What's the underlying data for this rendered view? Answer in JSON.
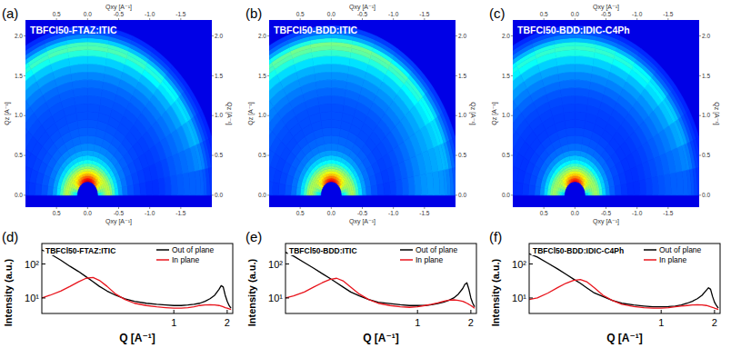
{
  "chart_data": [
    {
      "type": "image",
      "label": "(a)",
      "title": "TBFCl50-FTAZ:ITIC",
      "xlabel": "Qxy [A⁻¹]",
      "ylabel": "Qz [A⁻¹]",
      "xlim": [
        1.0,
        -2.0
      ],
      "ylim": [
        -0.15,
        2.2
      ],
      "xticks": [
        {
          "value": 0.5,
          "label": "0.5"
        },
        {
          "value": 0,
          "label": "0.0"
        },
        {
          "value": -0.5,
          "label": "-0.5"
        },
        {
          "value": -1,
          "label": "-1.0"
        },
        {
          "value": -1.5,
          "label": "-1.5"
        }
      ],
      "yticks": [
        {
          "value": 0,
          "label": "0.0"
        },
        {
          "value": 0.5,
          "label": "0.5"
        },
        {
          "value": 1,
          "label": "1.0"
        },
        {
          "value": 1.5,
          "label": "1.5"
        },
        {
          "value": 2,
          "label": "2.0"
        }
      ]
    },
    {
      "type": "image",
      "label": "(b)",
      "title": "TBFCl50-BDD:ITIC",
      "xlabel": "Qxy [A⁻¹]",
      "ylabel": "Qz [A⁻¹]",
      "xlim": [
        1.0,
        -2.0
      ],
      "ylim": [
        -0.15,
        2.2
      ],
      "xticks": [
        {
          "value": 0.5,
          "label": "0.5"
        },
        {
          "value": 0,
          "label": "0.0"
        },
        {
          "value": -0.5,
          "label": "-0.5"
        },
        {
          "value": -1,
          "label": "-1.0"
        },
        {
          "value": -1.5,
          "label": "-1.5"
        }
      ],
      "yticks": [
        {
          "value": 0,
          "label": "0.0"
        },
        {
          "value": 0.5,
          "label": "0.5"
        },
        {
          "value": 1,
          "label": "1.0"
        },
        {
          "value": 1.5,
          "label": "1.5"
        },
        {
          "value": 2,
          "label": "2.0"
        }
      ]
    },
    {
      "type": "image",
      "label": "(c)",
      "title": "TBFCl50-BDD:IDIC-C4Ph",
      "xlabel": "Qxy [A⁻¹]",
      "ylabel": "Qz [A⁻¹]",
      "xlim": [
        1.0,
        -2.0
      ],
      "ylim": [
        -0.15,
        2.2
      ],
      "xticks": [
        {
          "value": 0.5,
          "label": "0.5"
        },
        {
          "value": 0,
          "label": "0.0"
        },
        {
          "value": -0.5,
          "label": "-0.5"
        },
        {
          "value": -1,
          "label": "-1.0"
        },
        {
          "value": -1.5,
          "label": "-1.5"
        }
      ],
      "yticks": [
        {
          "value": 0,
          "label": "0.0"
        },
        {
          "value": 0.5,
          "label": "0.5"
        },
        {
          "value": 1,
          "label": "1.0"
        },
        {
          "value": 1.5,
          "label": "1.5"
        },
        {
          "value": 2,
          "label": "2.0"
        }
      ]
    },
    {
      "type": "line",
      "label": "(d)",
      "title": "TBFCl50-FTAZ:ITIC",
      "xlabel": "Q [A⁻¹]",
      "ylabel": "Intensity (a.u.)",
      "log": true,
      "legend": "top-right",
      "xlim": [
        0.18,
        2.15
      ],
      "ylim": [
        3.5,
        400
      ],
      "xticks": [
        1,
        2
      ],
      "yticks": [
        {
          "value": 10,
          "label": "10¹"
        },
        {
          "value": 100,
          "label": "10²"
        }
      ],
      "x": [
        0.18,
        0.2,
        0.23,
        0.26,
        0.29,
        0.32,
        0.35,
        0.38,
        0.42,
        0.47,
        0.53,
        0.6,
        0.7,
        0.8,
        0.9,
        1.0,
        1.1,
        1.2,
        1.3,
        1.4,
        1.5,
        1.6,
        1.7,
        1.8,
        1.85,
        1.9,
        1.95,
        2.0,
        2.05,
        2.1
      ],
      "series": [
        {
          "name": "Out of plane",
          "color": "#000000",
          "values": [
            260,
            200,
            130,
            85,
            60,
            42,
            30,
            22,
            16,
            12,
            9.5,
            8,
            7,
            6.5,
            6.2,
            6,
            6,
            6.2,
            6.5,
            7,
            8,
            9.5,
            12,
            18,
            23,
            21,
            12,
            8,
            6,
            5
          ]
        },
        {
          "name": "In plane",
          "color": "#e8141c",
          "values": [
            10,
            12,
            16,
            22,
            30,
            38,
            40,
            33,
            22,
            13,
            9,
            7,
            6,
            5.5,
            5.2,
            5,
            5,
            5.2,
            5.5,
            6,
            6.2,
            6.3,
            6.2,
            6,
            5.8,
            5.5,
            5.2,
            5,
            4.8,
            4.6
          ]
        }
      ]
    },
    {
      "type": "line",
      "label": "(e)",
      "title": "TBFCl50-BDD:ITIC",
      "xlabel": "Q [A⁻¹]",
      "ylabel": "Intensity (a.u.)",
      "log": true,
      "legend": "top-right",
      "xlim": [
        0.18,
        2.15
      ],
      "ylim": [
        3.5,
        400
      ],
      "xticks": [
        1,
        2
      ],
      "yticks": [
        {
          "value": 10,
          "label": "10¹"
        },
        {
          "value": 100,
          "label": "10²"
        }
      ],
      "x": [
        0.18,
        0.2,
        0.23,
        0.26,
        0.29,
        0.32,
        0.35,
        0.38,
        0.42,
        0.47,
        0.53,
        0.6,
        0.7,
        0.8,
        0.9,
        1.0,
        1.1,
        1.2,
        1.3,
        1.4,
        1.5,
        1.6,
        1.7,
        1.8,
        1.85,
        1.9,
        1.95,
        2.0,
        2.05,
        2.1
      ],
      "series": [
        {
          "name": "Out of plane",
          "color": "#000000",
          "values": [
            220,
            170,
            110,
            75,
            52,
            38,
            28,
            21,
            15,
            11.5,
            9,
            7.5,
            6.8,
            6.3,
            6,
            6,
            6,
            6.3,
            6.8,
            7.5,
            8.5,
            10,
            13,
            19,
            25,
            28,
            18,
            10,
            7,
            5.5
          ]
        },
        {
          "name": "In plane",
          "color": "#e8141c",
          "values": [
            10,
            11.5,
            15,
            21,
            28,
            35,
            38,
            32,
            21,
            13,
            9,
            7,
            6,
            5.5,
            5.3,
            5.5,
            6,
            6.5,
            7.2,
            8,
            8.6,
            8.8,
            8.5,
            8,
            7.5,
            7,
            6.5,
            6,
            5.5,
            5
          ]
        }
      ]
    },
    {
      "type": "line",
      "label": "(f)",
      "title": "TBFCl50-BDD:IDIC-C4Ph",
      "xlabel": "Q [A⁻¹]",
      "ylabel": "Intensity (a.u.)",
      "log": true,
      "legend": "top-right",
      "xlim": [
        0.18,
        2.15
      ],
      "ylim": [
        3.5,
        400
      ],
      "xticks": [
        1,
        2
      ],
      "yticks": [
        {
          "value": 10,
          "label": "10¹"
        },
        {
          "value": 100,
          "label": "10²"
        }
      ],
      "x": [
        0.18,
        0.2,
        0.23,
        0.26,
        0.29,
        0.32,
        0.35,
        0.38,
        0.42,
        0.47,
        0.53,
        0.6,
        0.7,
        0.8,
        0.9,
        1.0,
        1.1,
        1.2,
        1.3,
        1.4,
        1.5,
        1.6,
        1.7,
        1.8,
        1.85,
        1.9,
        1.95,
        2.0,
        2.05,
        2.1
      ],
      "series": [
        {
          "name": "Out of plane",
          "color": "#000000",
          "values": [
            200,
            160,
            105,
            72,
            50,
            36,
            27,
            20,
            14,
            11,
            8.5,
            7,
            6.2,
            5.8,
            5.5,
            5.5,
            5.6,
            5.8,
            6.2,
            7,
            8,
            9.5,
            12,
            17,
            20,
            18,
            11,
            7.5,
            6,
            5
          ]
        },
        {
          "name": "In plane",
          "color": "#e8141c",
          "values": [
            9,
            10,
            14,
            20,
            27,
            33,
            35,
            30,
            20,
            12,
            8.5,
            6.5,
            5.6,
            5.2,
            5,
            5,
            5.2,
            5.5,
            5.8,
            6,
            6.2,
            6.3,
            6.2,
            6,
            5.8,
            5.5,
            5.3,
            5,
            4.8,
            4.6
          ]
        }
      ]
    }
  ]
}
